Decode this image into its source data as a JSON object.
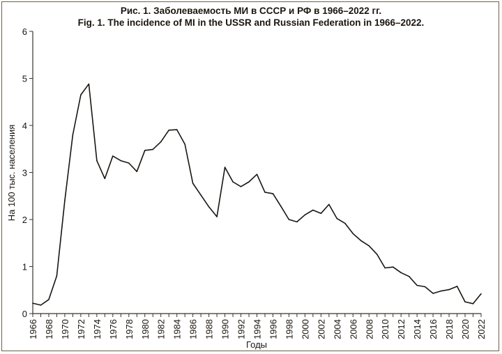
{
  "chart_data": {
    "type": "line",
    "title": "Рис. 1. Заболеваемость МИ в СССР и РФ в 1966–2022 гг.",
    "subtitle": "Fig. 1. The incidence of MI in the USSR and Russian Federation in 1966–2022.",
    "xlabel": "Годы",
    "ylabel": "На 100 тыс. населения",
    "xlim": [
      1966,
      2022
    ],
    "ylim": [
      0,
      6
    ],
    "grid": false,
    "x_ticks": [
      "1966",
      "1968",
      "1970",
      "1972",
      "1974",
      "1976",
      "1978",
      "1980",
      "1982",
      "1984",
      "1986",
      "1988",
      "1990",
      "1992",
      "1994",
      "1996",
      "1998",
      "2000",
      "2002",
      "2004",
      "2006",
      "2008",
      "2010",
      "2012",
      "2014",
      "2016",
      "2018",
      "2020",
      "2022"
    ],
    "y_ticks": [
      "0",
      "1",
      "2",
      "3",
      "4",
      "5",
      "6"
    ],
    "series": [
      {
        "name": "Incidence",
        "color": "#1a1510",
        "x": [
          1966,
          1967,
          1968,
          1969,
          1970,
          1971,
          1972,
          1973,
          1974,
          1975,
          1976,
          1977,
          1978,
          1979,
          1980,
          1981,
          1982,
          1983,
          1984,
          1985,
          1986,
          1987,
          1988,
          1989,
          1990,
          1991,
          1992,
          1993,
          1994,
          1995,
          1996,
          1997,
          1998,
          1999,
          2000,
          2001,
          2002,
          2003,
          2004,
          2005,
          2006,
          2007,
          2008,
          2009,
          2010,
          2011,
          2012,
          2013,
          2014,
          2015,
          2016,
          2017,
          2018,
          2019,
          2020,
          2021,
          2022
        ],
        "values": [
          0.22,
          0.18,
          0.3,
          0.8,
          2.4,
          3.8,
          4.65,
          4.88,
          3.25,
          2.87,
          3.35,
          3.25,
          3.2,
          3.02,
          3.47,
          3.49,
          3.65,
          3.9,
          3.91,
          3.6,
          2.77,
          2.52,
          2.27,
          2.06,
          3.11,
          2.8,
          2.7,
          2.8,
          2.96,
          2.58,
          2.55,
          2.28,
          2.0,
          1.95,
          2.1,
          2.2,
          2.13,
          2.32,
          2.02,
          1.92,
          1.7,
          1.55,
          1.44,
          1.26,
          0.97,
          0.99,
          0.87,
          0.79,
          0.6,
          0.57,
          0.43,
          0.48,
          0.51,
          0.58,
          0.25,
          0.21,
          0.42
        ]
      }
    ]
  }
}
